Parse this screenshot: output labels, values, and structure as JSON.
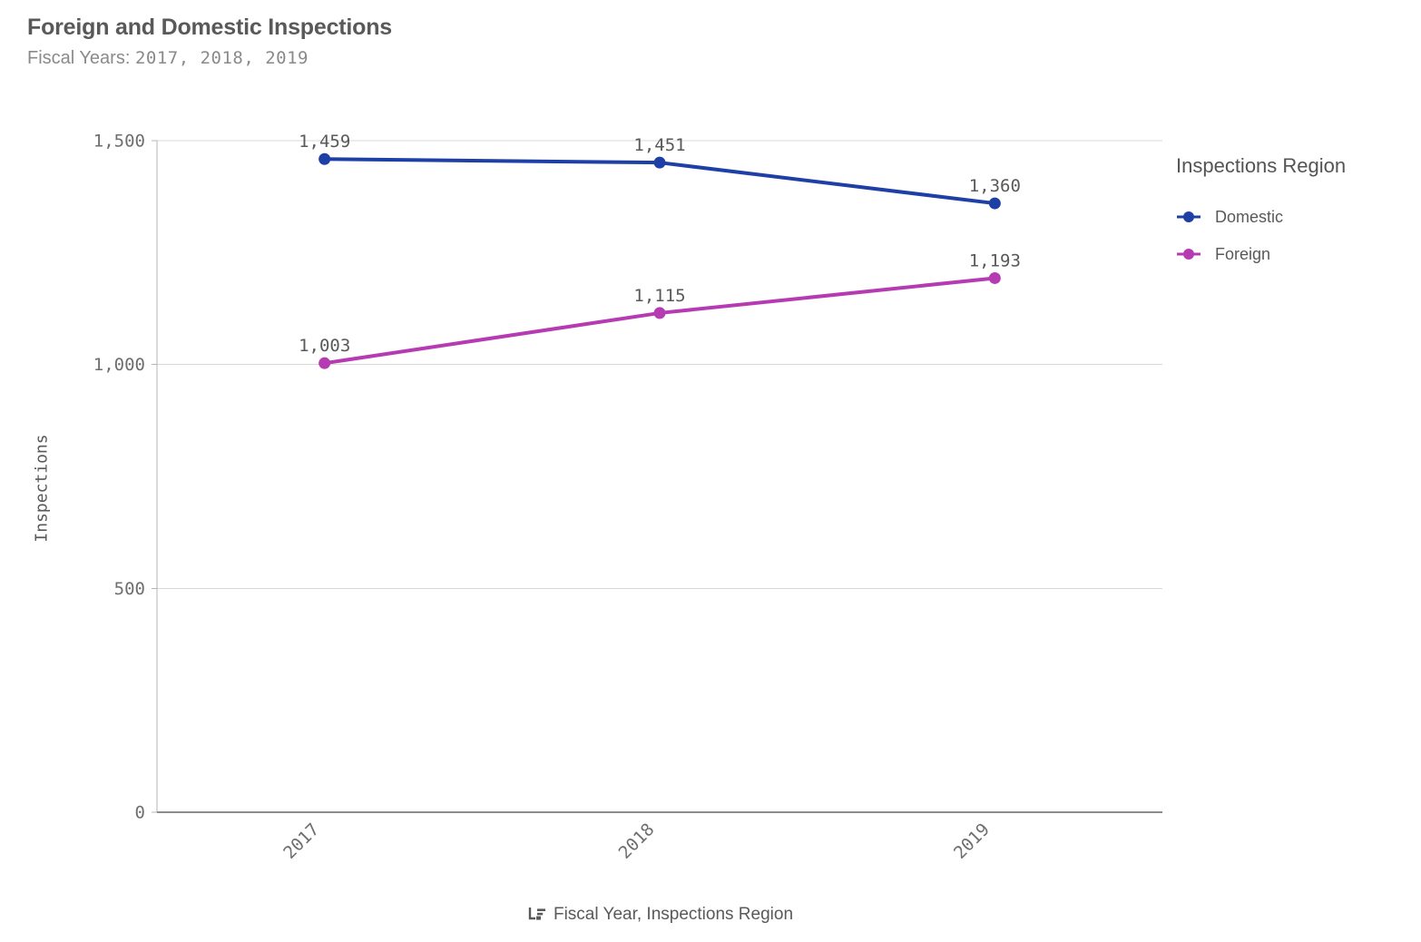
{
  "header": {
    "title": "Foreign and Domestic Inspections",
    "subtitle_prefix": "Fiscal Years: ",
    "subtitle_values": "2017, 2018, 2019"
  },
  "legend": {
    "title": "Inspections Region",
    "items": [
      {
        "label": "Domestic",
        "color": "#1d3fa6"
      },
      {
        "label": "Foreign",
        "color": "#b63bb3"
      }
    ]
  },
  "footer": {
    "icon": "drill-down-dimension-icon",
    "label": "Fiscal Year, Inspections Region"
  },
  "chart_data": {
    "type": "line",
    "categories": [
      "2017",
      "2018",
      "2019"
    ],
    "series": [
      {
        "name": "Domestic",
        "color": "#1d3fa6",
        "values": [
          1459,
          1451,
          1360
        ],
        "labels": [
          "1,459",
          "1,451",
          "1,360"
        ]
      },
      {
        "name": "Foreign",
        "color": "#b63bb3",
        "values": [
          1003,
          1115,
          1193
        ],
        "labels": [
          "1,003",
          "1,115",
          "1,193"
        ]
      }
    ],
    "title": "Foreign and Domestic Inspections",
    "xlabel": "Fiscal Year, Inspections Region",
    "ylabel": "Inspections",
    "ylim": [
      0,
      1500
    ],
    "yticks": [
      0,
      500,
      1000,
      1500
    ],
    "ytick_labels": [
      "0",
      "500",
      "1,000",
      "1,500"
    ],
    "grid": true,
    "legend_position": "right"
  },
  "colors": {
    "gridline": "#d8d8d8",
    "axis_line": "#b4b4b4",
    "baseline": "#8c8c8c",
    "tick_text": "#6e6e6e",
    "label_text": "#595959"
  }
}
